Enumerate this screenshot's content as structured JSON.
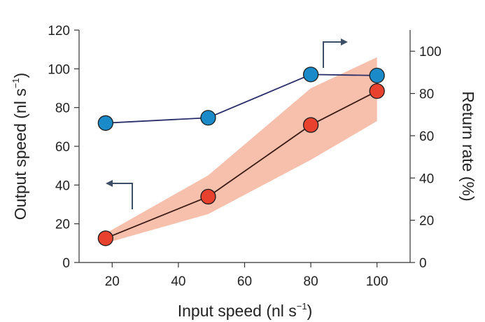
{
  "chart_data": {
    "type": "line",
    "x": [
      18,
      49,
      80,
      100
    ],
    "xlabel": "Input speed (nl s⁻¹)",
    "xlabel_parts": [
      "Input speed (nl s",
      "−1",
      ")"
    ],
    "xlim": [
      10,
      110
    ],
    "xticks": [
      20,
      40,
      60,
      80,
      100
    ],
    "ylabel_left": "Output speed (nl s⁻¹)",
    "ylabel_left_parts": [
      "Output speed (nl s",
      "−1",
      ")"
    ],
    "ylim_left": [
      0,
      120
    ],
    "yticks_left": [
      0,
      20,
      40,
      60,
      80,
      100,
      120
    ],
    "ylabel_right": "Return rate (%)",
    "ylim_right": [
      0,
      110
    ],
    "yticks_right": [
      0,
      20,
      40,
      60,
      80,
      100
    ],
    "series": [
      {
        "axis": "left",
        "color": "#e8412e",
        "line_color": "#3a1a14",
        "values": [
          12.5,
          34,
          71,
          88.5
        ],
        "band": {
          "color": "#f6b9a4",
          "lower": [
            10,
            25,
            53,
            73
          ],
          "upper": [
            15,
            45,
            90,
            106
          ]
        }
      },
      {
        "axis": "right",
        "color": "#1a8ac8",
        "line_color": "#2a2f6a",
        "values": [
          66,
          68.5,
          89,
          88.5
        ]
      }
    ],
    "grid": false,
    "legend": "none",
    "annotations": [
      {
        "type": "arrow",
        "direction": "left",
        "meaning": "series uses left axis"
      },
      {
        "type": "arrow",
        "direction": "right",
        "meaning": "series uses right axis"
      }
    ]
  }
}
